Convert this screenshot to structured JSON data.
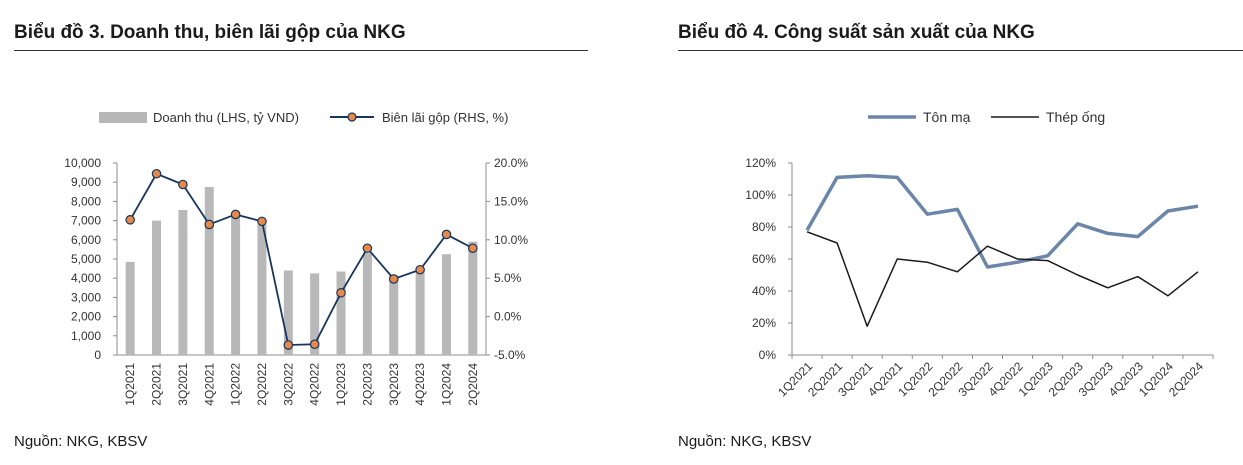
{
  "colors": {
    "bar": "#b8b8b8",
    "margin_line": "#17365d",
    "marker_fill": "#e8894a",
    "ton_ma": "#6b86a8",
    "thep_ong": "#1a1a1a"
  },
  "chart_data": [
    {
      "type": "bar",
      "title": "Biểu đồ 3. Doanh thu, biên lãi gộp của NKG",
      "source": "Nguồn: NKG, KBSV",
      "categories": [
        "1Q2021",
        "2Q2021",
        "3Q2021",
        "4Q2021",
        "1Q2022",
        "2Q2022",
        "3Q2022",
        "4Q2022",
        "1Q2023",
        "2Q2023",
        "3Q2023",
        "4Q2023",
        "1Q2024",
        "2Q2024"
      ],
      "series": [
        {
          "name": "Doanh thu (LHS, tỷ VND)",
          "kind": "bar",
          "axis": "left",
          "values": [
            4850,
            7000,
            7550,
            8750,
            7300,
            6800,
            4400,
            4250,
            4350,
            5300,
            4150,
            4500,
            5250,
            5900
          ]
        },
        {
          "name": "Biên lãi gộp (RHS, %)",
          "kind": "line-marker",
          "axis": "right",
          "values": [
            12.6,
            18.6,
            17.2,
            12.0,
            13.3,
            12.4,
            -3.7,
            -3.6,
            3.1,
            8.9,
            4.9,
            6.1,
            10.7,
            8.9
          ]
        }
      ],
      "ylim_left": [
        0,
        10000
      ],
      "yticks_left": [
        "0",
        "1,000",
        "2,000",
        "3,000",
        "4,000",
        "5,000",
        "6,000",
        "7,000",
        "8,000",
        "9,000",
        "10,000"
      ],
      "ylim_right": [
        -5,
        20
      ],
      "yticks_right": [
        "-5.0%",
        "0.0%",
        "5.0%",
        "10.0%",
        "15.0%",
        "20.0%"
      ],
      "legend_position": "top",
      "grid": false
    },
    {
      "type": "line",
      "title": "Biểu đồ 4. Công suất sản xuất của NKG",
      "source": "Nguồn: NKG, KBSV",
      "categories": [
        "1Q2021",
        "2Q2021",
        "3Q2021",
        "4Q2021",
        "1Q2022",
        "2Q2022",
        "3Q2022",
        "4Q2022",
        "1Q2023",
        "2Q2023",
        "3Q2023",
        "4Q2023",
        "1Q2024",
        "2Q2024"
      ],
      "series": [
        {
          "name": "Tôn mạ",
          "values": [
            78,
            111,
            112,
            111,
            88,
            91,
            55,
            58,
            62,
            82,
            76,
            74,
            90,
            93
          ]
        },
        {
          "name": "Thép ống",
          "values": [
            77,
            70,
            18,
            60,
            58,
            52,
            68,
            60,
            59,
            50,
            42,
            49,
            37,
            52
          ]
        }
      ],
      "ylim": [
        0,
        120
      ],
      "yticks": [
        "0%",
        "20%",
        "40%",
        "60%",
        "80%",
        "100%",
        "120%"
      ],
      "legend_position": "top",
      "grid": false
    }
  ]
}
